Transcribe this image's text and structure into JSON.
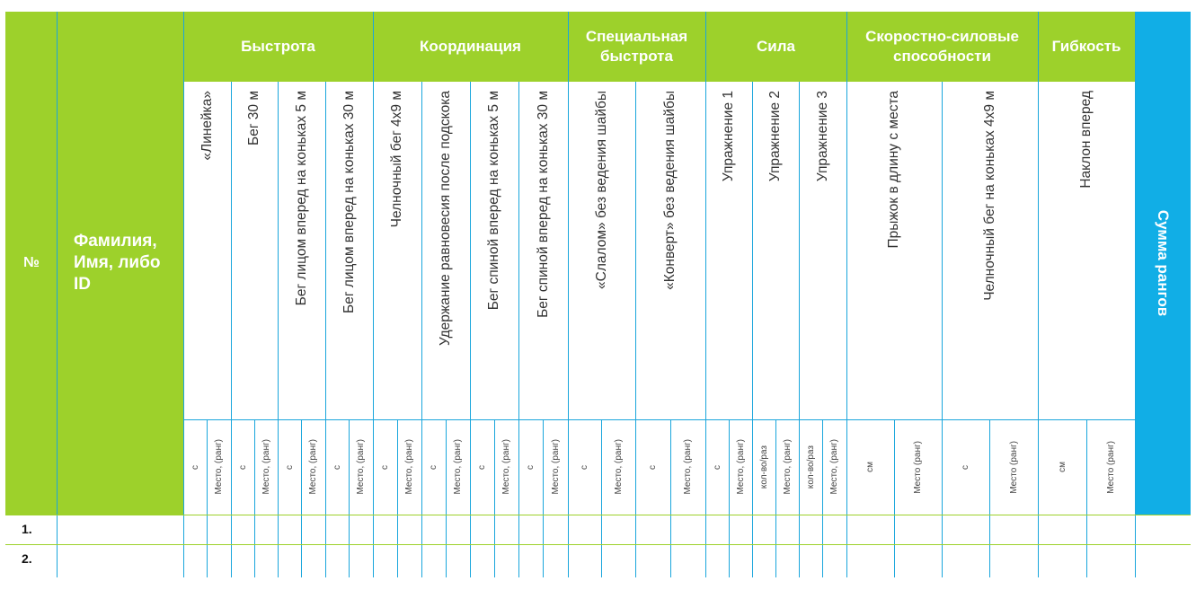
{
  "columns": {
    "number": "№",
    "name": [
      "Фамилия,",
      "Имя, либо",
      "ID"
    ],
    "sum": "Сумма рангов"
  },
  "groups": [
    {
      "label": [
        "Быстрота"
      ]
    },
    {
      "label": [
        "Координация"
      ]
    },
    {
      "label": [
        "Специальная",
        "быстрота"
      ]
    },
    {
      "label": [
        "Сила"
      ]
    },
    {
      "label": [
        "Скоростно-силовые",
        "способности"
      ]
    },
    {
      "label": [
        "Гибкость"
      ]
    }
  ],
  "tests": [
    "«Линейка»",
    "Бег 30 м",
    "Бег лицом вперед на коньках 5 м",
    "Бег лицом вперед на коньках 30 м",
    "Челночный бег 4х9 м",
    "Удержание равновесия после подскока",
    "Бег спиной вперед на коньках 5 м",
    "Бег спиной вперед на коньках 30 м",
    "«Слалом» без ведения шайбы",
    "«Конверт» без ведения шайбы",
    "Упражнение 1",
    "Упражнение 2",
    "Упражнение 3",
    "Прыжок в длину с места",
    "Челночный бег на коньках  4х9 м",
    "Наклон вперед"
  ],
  "units": [
    "с",
    "Место, (ранг)",
    "с",
    "Место, (ранг)",
    "с",
    "Место, (ранг)",
    "с",
    "Место, (ранг)",
    "с",
    "Место, (ранг)",
    "с",
    "Место, (ранг)",
    "с",
    "Место, (ранг)",
    "с",
    "Место, (ранг)",
    "с",
    "Место, (ранг)",
    "с",
    "Место, (ранг)",
    "с",
    "Место, (ранг)",
    "кол-во/раз",
    "Место, (ранг)",
    "кол-во/раз",
    "Место, (ранг)",
    "см",
    "Место (ранг)",
    "с",
    "Место (ранг)",
    "см",
    "Место (ранг)"
  ],
  "rows": [
    "1.",
    "2."
  ],
  "colors": {
    "green": "#9dd12b",
    "blue": "#11aee6",
    "grid": "#1aa6dc"
  }
}
